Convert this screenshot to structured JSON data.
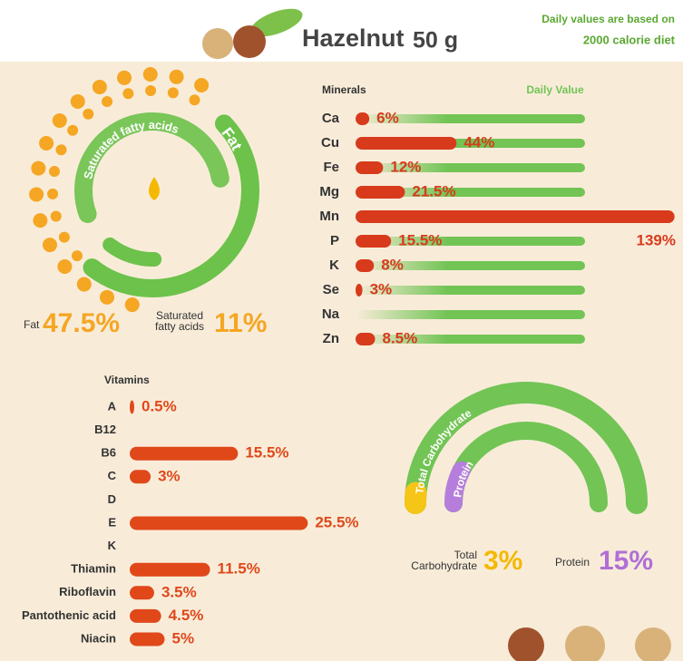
{
  "header": {
    "title": "Hazelnut",
    "amount": "50 g",
    "note_line1": "Daily values are based on",
    "note_line2": "2000 calorie diet"
  },
  "chart_data": [
    {
      "type": "bar",
      "title": "Minerals",
      "track_label": "Daily Value",
      "color": "#d83a1c",
      "track_color": "#72c455",
      "categories": [
        "Ca",
        "Cu",
        "Fe",
        "Mg",
        "Mn",
        "P",
        "K",
        "Se",
        "Na",
        "Zn"
      ],
      "values": [
        6,
        44,
        12,
        21.5,
        139,
        15.5,
        8,
        3,
        null,
        8.5
      ],
      "value_labels": [
        "6%",
        "44%",
        "12%",
        "21.5%",
        "139%",
        "15.5%",
        "8%",
        "3%",
        null,
        "8.5%"
      ]
    },
    {
      "type": "bar",
      "title": "Vitamins",
      "color": "#e0481a",
      "categories": [
        "A",
        "B12",
        "B6",
        "C",
        "D",
        "E",
        "K",
        "Thiamin",
        "Riboflavin",
        "Pantothenic acid",
        "Niacin"
      ],
      "values": [
        0.5,
        null,
        15.5,
        3,
        null,
        25.5,
        null,
        11.5,
        3.5,
        4.5,
        5
      ],
      "value_labels": [
        "0.5%",
        null,
        "15.5%",
        "3%",
        null,
        "25.5%",
        null,
        "11.5%",
        "3.5%",
        "4.5%",
        "5%"
      ]
    },
    {
      "type": "ring",
      "color": "#f5a623",
      "series": [
        {
          "name": "Fat",
          "color": "#6cc24a",
          "value": 47.5,
          "value_label": "47.5%"
        },
        {
          "name": "Saturated fatty acids",
          "color": "#6cc24a",
          "value": 11,
          "value_label": "11%"
        }
      ]
    },
    {
      "type": "gauge",
      "track_color": "#72c455",
      "series": [
        {
          "name": "Total Carbohydrate",
          "color": "#f5c518",
          "label_color": "#f5b800",
          "value": 3,
          "value_label": "3%"
        },
        {
          "name": "Protein",
          "color": "#b57edc",
          "label_color": "#b06fd6",
          "value": 15,
          "value_label": "15%"
        }
      ]
    }
  ]
}
